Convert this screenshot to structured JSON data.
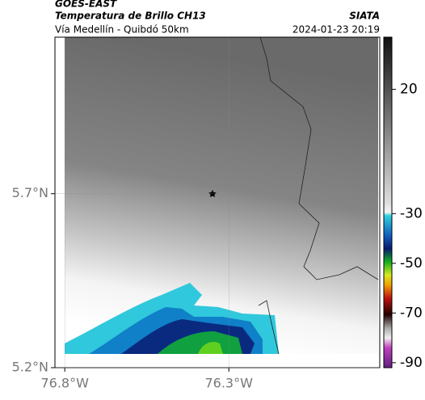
{
  "header": {
    "satellite": "GOES-EAST",
    "title": "Temperatura de Brillo CH13",
    "agency": "SIATA",
    "subtitle": "Vía Medellín - Quibdó 50km",
    "datetime": "2024-01-23 20:19"
  },
  "map": {
    "lon_range": [
      -76.83,
      -75.84
    ],
    "lat_range": [
      5.2,
      6.15
    ],
    "lon_ticks": [
      {
        "value": -76.8,
        "label": "76.8°W"
      },
      {
        "value": -76.3,
        "label": "76.3°W"
      }
    ],
    "lat_ticks": [
      {
        "value": 5.7,
        "label": "5.7°N"
      },
      {
        "value": 5.2,
        "label": "5.2°N"
      }
    ]
  },
  "colorbar": {
    "range": [
      -92,
      41
    ],
    "ticks": [
      20,
      -30,
      -50,
      -70,
      -90
    ]
  }
}
